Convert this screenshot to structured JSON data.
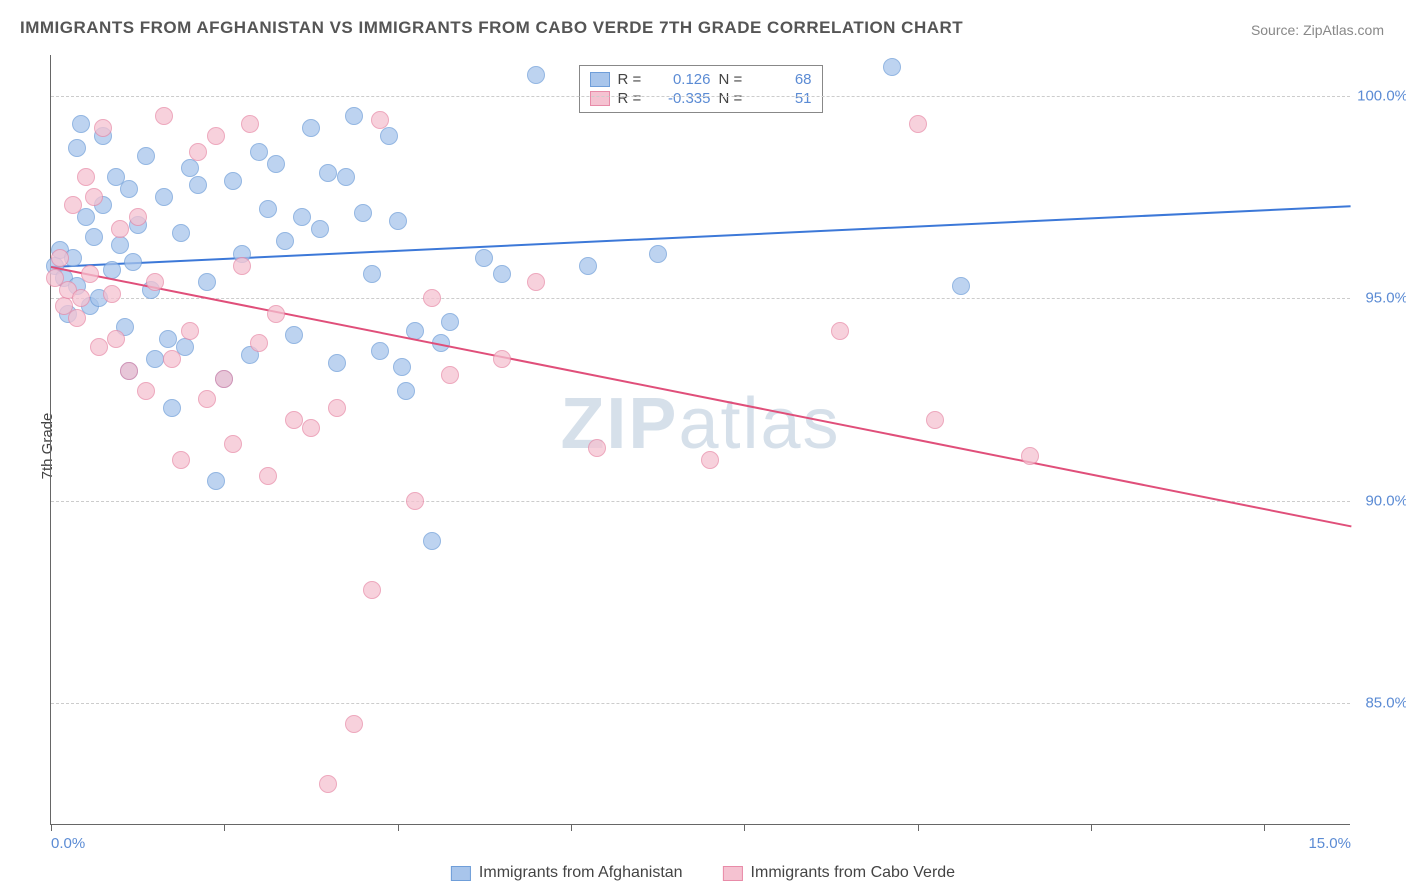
{
  "title": "IMMIGRANTS FROM AFGHANISTAN VS IMMIGRANTS FROM CABO VERDE 7TH GRADE CORRELATION CHART",
  "source": "Source: ZipAtlas.com",
  "ylabel": "7th Grade",
  "watermark_bold": "ZIP",
  "watermark_light": "atlas",
  "chart": {
    "type": "scatter",
    "xlim": [
      0,
      15
    ],
    "ylim": [
      82,
      101
    ],
    "xticks": [
      0,
      2,
      4,
      6,
      8,
      10,
      12,
      14
    ],
    "xtick_labels_shown": {
      "0": "0.0%",
      "15": "15.0%"
    },
    "yticks": [
      85,
      90,
      95,
      100
    ],
    "ytick_labels": [
      "85.0%",
      "90.0%",
      "95.0%",
      "100.0%"
    ],
    "background_color": "#ffffff",
    "grid_color": "#cccccc",
    "series": [
      {
        "name": "Immigrants from Afghanistan",
        "color_fill": "#a8c5eb",
        "color_stroke": "#6f9ed9",
        "trend_color": "#3c78d8",
        "R": "0.126",
        "N": "68",
        "trend": {
          "x1": 0,
          "y1": 95.8,
          "x2": 15,
          "y2": 97.3
        },
        "points": [
          [
            0.05,
            95.8
          ],
          [
            0.1,
            96.2
          ],
          [
            0.15,
            95.5
          ],
          [
            0.2,
            94.6
          ],
          [
            0.25,
            96.0
          ],
          [
            0.3,
            95.3
          ],
          [
            0.3,
            98.7
          ],
          [
            0.4,
            97.0
          ],
          [
            0.45,
            94.8
          ],
          [
            0.5,
            96.5
          ],
          [
            0.55,
            95.0
          ],
          [
            0.6,
            97.3
          ],
          [
            0.6,
            99.0
          ],
          [
            0.7,
            95.7
          ],
          [
            0.75,
            98.0
          ],
          [
            0.8,
            96.3
          ],
          [
            0.85,
            94.3
          ],
          [
            0.9,
            97.7
          ],
          [
            0.95,
            95.9
          ],
          [
            1.0,
            96.8
          ],
          [
            1.1,
            98.5
          ],
          [
            1.15,
            95.2
          ],
          [
            1.2,
            93.5
          ],
          [
            1.3,
            97.5
          ],
          [
            1.35,
            94.0
          ],
          [
            1.4,
            92.3
          ],
          [
            1.5,
            96.6
          ],
          [
            1.55,
            93.8
          ],
          [
            1.6,
            98.2
          ],
          [
            1.7,
            97.8
          ],
          [
            1.8,
            95.4
          ],
          [
            1.9,
            90.5
          ],
          [
            2.0,
            93.0
          ],
          [
            2.1,
            97.9
          ],
          [
            2.2,
            96.1
          ],
          [
            2.3,
            93.6
          ],
          [
            2.4,
            98.6
          ],
          [
            2.5,
            97.2
          ],
          [
            2.6,
            98.3
          ],
          [
            2.7,
            96.4
          ],
          [
            2.8,
            94.1
          ],
          [
            2.9,
            97.0
          ],
          [
            3.0,
            99.2
          ],
          [
            3.1,
            96.7
          ],
          [
            3.2,
            98.1
          ],
          [
            3.3,
            93.4
          ],
          [
            3.4,
            98.0
          ],
          [
            3.5,
            99.5
          ],
          [
            3.6,
            97.1
          ],
          [
            3.7,
            95.6
          ],
          [
            3.8,
            93.7
          ],
          [
            3.9,
            99.0
          ],
          [
            4.0,
            96.9
          ],
          [
            4.05,
            93.3
          ],
          [
            4.1,
            92.7
          ],
          [
            4.2,
            94.2
          ],
          [
            4.4,
            89.0
          ],
          [
            4.5,
            93.9
          ],
          [
            4.6,
            94.4
          ],
          [
            5.0,
            96.0
          ],
          [
            5.2,
            95.6
          ],
          [
            5.6,
            100.5
          ],
          [
            6.2,
            95.8
          ],
          [
            7.0,
            96.1
          ],
          [
            9.7,
            100.7
          ],
          [
            10.5,
            95.3
          ],
          [
            0.35,
            99.3
          ],
          [
            0.9,
            93.2
          ]
        ]
      },
      {
        "name": "Immigrants from Cabo Verde",
        "color_fill": "#f5c2d1",
        "color_stroke": "#e88ba8",
        "trend_color": "#e04f7a",
        "R": "-0.335",
        "N": "51",
        "trend": {
          "x1": 0,
          "y1": 95.8,
          "x2": 15,
          "y2": 89.4
        },
        "points": [
          [
            0.05,
            95.5
          ],
          [
            0.1,
            96.0
          ],
          [
            0.15,
            94.8
          ],
          [
            0.2,
            95.2
          ],
          [
            0.25,
            97.3
          ],
          [
            0.3,
            94.5
          ],
          [
            0.35,
            95.0
          ],
          [
            0.4,
            98.0
          ],
          [
            0.45,
            95.6
          ],
          [
            0.5,
            97.5
          ],
          [
            0.55,
            93.8
          ],
          [
            0.6,
            99.2
          ],
          [
            0.7,
            95.1
          ],
          [
            0.75,
            94.0
          ],
          [
            0.8,
            96.7
          ],
          [
            0.9,
            93.2
          ],
          [
            1.0,
            97.0
          ],
          [
            1.1,
            92.7
          ],
          [
            1.2,
            95.4
          ],
          [
            1.3,
            99.5
          ],
          [
            1.4,
            93.5
          ],
          [
            1.5,
            91.0
          ],
          [
            1.6,
            94.2
          ],
          [
            1.7,
            98.6
          ],
          [
            1.8,
            92.5
          ],
          [
            1.9,
            99.0
          ],
          [
            2.0,
            93.0
          ],
          [
            2.1,
            91.4
          ],
          [
            2.2,
            95.8
          ],
          [
            2.3,
            99.3
          ],
          [
            2.4,
            93.9
          ],
          [
            2.5,
            90.6
          ],
          [
            2.6,
            94.6
          ],
          [
            2.8,
            92.0
          ],
          [
            3.0,
            91.8
          ],
          [
            3.2,
            83.0
          ],
          [
            3.3,
            92.3
          ],
          [
            3.5,
            84.5
          ],
          [
            3.7,
            87.8
          ],
          [
            3.8,
            99.4
          ],
          [
            4.2,
            90.0
          ],
          [
            4.4,
            95.0
          ],
          [
            4.6,
            93.1
          ],
          [
            5.2,
            93.5
          ],
          [
            5.6,
            95.4
          ],
          [
            6.3,
            91.3
          ],
          [
            7.6,
            91.0
          ],
          [
            9.1,
            94.2
          ],
          [
            10.2,
            92.0
          ],
          [
            11.3,
            91.1
          ],
          [
            10.0,
            99.3
          ]
        ]
      }
    ]
  },
  "legend_bottom": [
    {
      "swatch_fill": "#a8c5eb",
      "swatch_stroke": "#6f9ed9",
      "label": "Immigrants from Afghanistan"
    },
    {
      "swatch_fill": "#f5c2d1",
      "swatch_stroke": "#e88ba8",
      "label": "Immigrants from Cabo Verde"
    }
  ]
}
